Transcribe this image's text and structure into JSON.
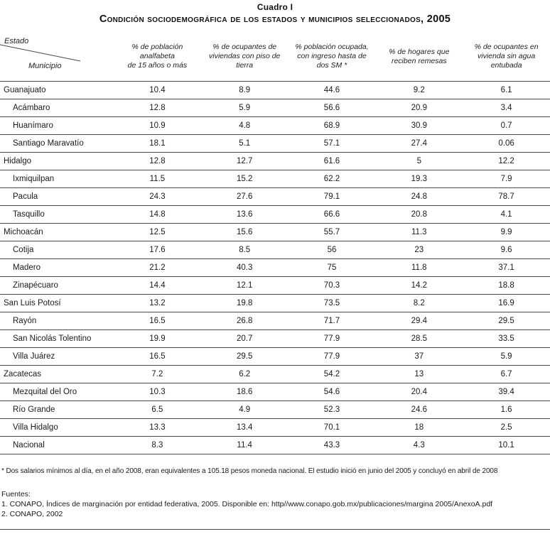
{
  "title": {
    "label": "Cuadro I",
    "subtitle": "Condición sociodemográfica de los estados y municipios seleccionados, 2005"
  },
  "table": {
    "corner": {
      "top": "Estado",
      "bottom": "Municipio"
    },
    "columns": [
      "% de población\nanalfabeta\nde 15 años o más",
      "% de ocupantes de\nviviendas con piso de\ntierra",
      "% población ocupada,\ncon ingreso hasta de\ndos SM *",
      "% de hogares que\nreciben remesas",
      "% de ocupantes en\nvivienda sin agua\nentubada"
    ],
    "rows": [
      {
        "name": "Guanajuato",
        "level": "state",
        "values": [
          "10.4",
          "8.9",
          "44.6",
          "9.2",
          "6.1"
        ]
      },
      {
        "name": "Acámbaro",
        "level": "municipio",
        "values": [
          "12.8",
          "5.9",
          "56.6",
          "20.9",
          "3.4"
        ]
      },
      {
        "name": "Huanímaro",
        "level": "municipio",
        "values": [
          "10.9",
          "4.8",
          "68.9",
          "30.9",
          "0.7"
        ]
      },
      {
        "name": "Santiago Maravatío",
        "level": "municipio",
        "values": [
          "18.1",
          "5.1",
          "57.1",
          "27.4",
          "0.06"
        ]
      },
      {
        "name": "Hidalgo",
        "level": "state",
        "values": [
          "12.8",
          "12.7",
          "61.6",
          "5",
          "12.2"
        ]
      },
      {
        "name": "Ixmiquilpan",
        "level": "municipio",
        "values": [
          "11.5",
          "15.2",
          "62.2",
          "19.3",
          "7.9"
        ]
      },
      {
        "name": "Pacula",
        "level": "municipio",
        "values": [
          "24.3",
          "27.6",
          "79.1",
          "24.8",
          "78.7"
        ]
      },
      {
        "name": "Tasquillo",
        "level": "municipio",
        "values": [
          "14.8",
          "13.6",
          "66.6",
          "20.8",
          "4.1"
        ]
      },
      {
        "name": "Michoacán",
        "level": "state",
        "values": [
          "12.5",
          "15.6",
          "55.7",
          "11.3",
          "9.9"
        ]
      },
      {
        "name": "Cotija",
        "level": "municipio",
        "values": [
          "17.6",
          "8.5",
          "56",
          "23",
          "9.6"
        ]
      },
      {
        "name": "Madero",
        "level": "municipio",
        "values": [
          "21.2",
          "40.3",
          "75",
          "11.8",
          "37.1"
        ]
      },
      {
        "name": "Zinapécuaro",
        "level": "municipio",
        "values": [
          "14.4",
          "12.1",
          "70.3",
          "14.2",
          "18.8"
        ]
      },
      {
        "name": "San Luis Potosí",
        "level": "state",
        "values": [
          "13.2",
          "19.8",
          "73.5",
          "8.2",
          "16.9"
        ]
      },
      {
        "name": "Rayón",
        "level": "municipio",
        "values": [
          "16.5",
          "26.8",
          "71.7",
          "29.4",
          "29.5"
        ]
      },
      {
        "name": "San Nicolás Tolentino",
        "level": "municipio",
        "values": [
          "19.9",
          "20.7",
          "77.9",
          "28.5",
          "33.5"
        ]
      },
      {
        "name": "Villa Juárez",
        "level": "municipio",
        "values": [
          "16.5",
          "29.5",
          "77.9",
          "37",
          "5.9"
        ]
      },
      {
        "name": "Zacatecas",
        "level": "state",
        "values": [
          "7.2",
          "6.2",
          "54.2",
          "13",
          "6.7"
        ]
      },
      {
        "name": "Mezquital del Oro",
        "level": "municipio",
        "values": [
          "10.3",
          "18.6",
          "54.6",
          "20.4",
          "39.4"
        ]
      },
      {
        "name": "Río Grande",
        "level": "municipio",
        "values": [
          "6.5",
          "4.9",
          "52.3",
          "24.6",
          "1.6"
        ]
      },
      {
        "name": "Villa Hidalgo",
        "level": "municipio",
        "values": [
          "13.3",
          "13.4",
          "70.1",
          "18",
          "2.5"
        ]
      },
      {
        "name": "Nacional",
        "level": "municipio",
        "values": [
          "8.3",
          "11.4",
          "43.3",
          "4.3",
          "10.1"
        ]
      }
    ]
  },
  "footnotes": {
    "asterisk": "* Dos salarios mínimos al día, en el año 2008, eran equivalentes a 105.18 pesos moneda nacional. El estudio inició en junio del 2005 y concluyó en abril de 2008",
    "sources_label": "Fuentes:",
    "sources": [
      "1. CONAPO, Índices de marginación por entidad federativa, 2005. Disponible en: http//www.conapo.gob.mx/publicaciones/margina 2005/AnexoA.pdf",
      "2. CONAPO, 2002"
    ]
  },
  "colors": {
    "rule": "#4a4a4a",
    "text": "#1a1a1a",
    "background": "#ffffff"
  }
}
